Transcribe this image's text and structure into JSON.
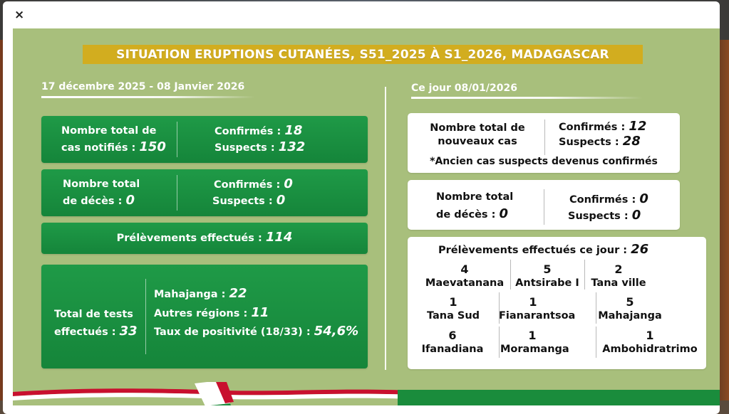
{
  "modal": {
    "close_label": "×"
  },
  "poster": {
    "title": "SITUATION ERUPTIONS CUTANÉES, S51_2025 À S1_2026, MADAGASCAR",
    "left": {
      "period": "17 décembre 2025  - 08 Janvier 2026",
      "cases": {
        "label1": "Nombre total de",
        "label2": "cas notifiés :",
        "total": "150",
        "confirmed_label": "Confirmés :",
        "confirmed": "18",
        "suspects_label": "Suspects :",
        "suspects": "132"
      },
      "deaths": {
        "label1": "Nombre total",
        "label2": "de décès :",
        "total": "0",
        "confirmed_label": "Confirmés :",
        "confirmed": "0",
        "suspects_label": "Suspects :",
        "suspects": "0"
      },
      "samples": {
        "label": "Prélèvements effectués :",
        "value": "114"
      },
      "tests": {
        "label1": "Total de tests",
        "label2": "effectués :",
        "total": "33",
        "mahajanga_label": "Mahajanga :",
        "mahajanga": "22",
        "other_label": "Autres régions :",
        "other": "11",
        "positivity_label": "Taux de positivité (18/33) :",
        "positivity": "54,6%"
      }
    },
    "right": {
      "period": "Ce jour 08/01/2026",
      "new_cases": {
        "label1": "Nombre total de",
        "label2": "nouveaux cas",
        "confirmed_label": "Confirmés :",
        "confirmed": "12",
        "suspects_label": "Suspects :",
        "suspects": "28",
        "note": "*Ancien cas suspects devenus confirmés"
      },
      "deaths": {
        "label1": "Nombre total",
        "label2": "de décès :",
        "total": "0",
        "confirmed_label": "Confirmés :",
        "confirmed": "0",
        "suspects_label": "Suspects :",
        "suspects": "0"
      },
      "samples_today": {
        "label": "Prélèvements effectués ce jour :",
        "value": "26",
        "districts": [
          {
            "n": "4",
            "name": "Maevatanana"
          },
          {
            "n": "5",
            "name": "Antsirabe I"
          },
          {
            "n": "2",
            "name": "Tana ville"
          },
          {
            "n": "1",
            "name": "Tana Sud"
          },
          {
            "n": "1",
            "name": "Fianarantsoa"
          },
          {
            "n": "5",
            "name": "Mahajanga"
          },
          {
            "n": "6",
            "name": "Ifanadiana"
          },
          {
            "n": "1",
            "name": "Moramanga"
          },
          {
            "n": "1",
            "name": "Ambohidratrimo"
          }
        ]
      }
    }
  },
  "colors": {
    "background": "#a8bf7c",
    "green_box": "#1a8f40",
    "title_bar": "#d2ad1f",
    "white": "#ffffff"
  }
}
